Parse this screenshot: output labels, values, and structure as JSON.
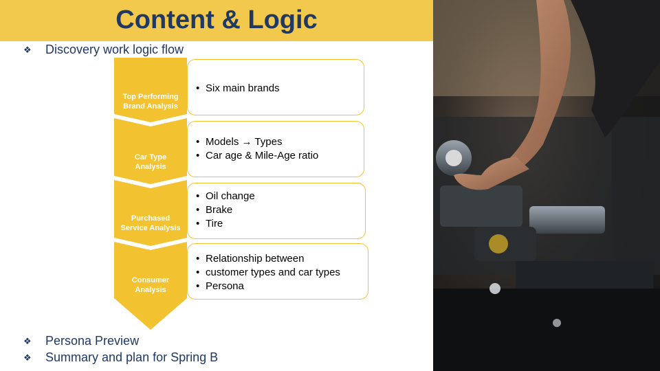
{
  "title": "Content & Logic",
  "bullets": {
    "b1": "Discovery work logic flow",
    "b2": "Persona Preview",
    "b3": "Summary and plan for Spring B"
  },
  "flow": {
    "steps": [
      {
        "label_l1": "Top Performing",
        "label_l2": "Brand Analysis",
        "items": [
          "Six main brands"
        ]
      },
      {
        "label_l1": "Car Type",
        "label_l2": "Analysis",
        "items": [
          "Models → Types",
          "Car age & Mile-Age ratio"
        ]
      },
      {
        "label_l1": "Purchased",
        "label_l2": "Service Analysis",
        "items": [
          "Oil change",
          "Brake",
          "Tire"
        ]
      },
      {
        "label_l1": "Consumer",
        "label_l2": "Analysis",
        "items": [
          "Relationship between",
          "customer types and car types",
          "Persona"
        ]
      }
    ]
  },
  "colors": {
    "accent": "#F2C94C",
    "title": "#1F3864",
    "chevron": "#F2C230"
  },
  "image": {
    "icon": "car-engine-photo"
  }
}
